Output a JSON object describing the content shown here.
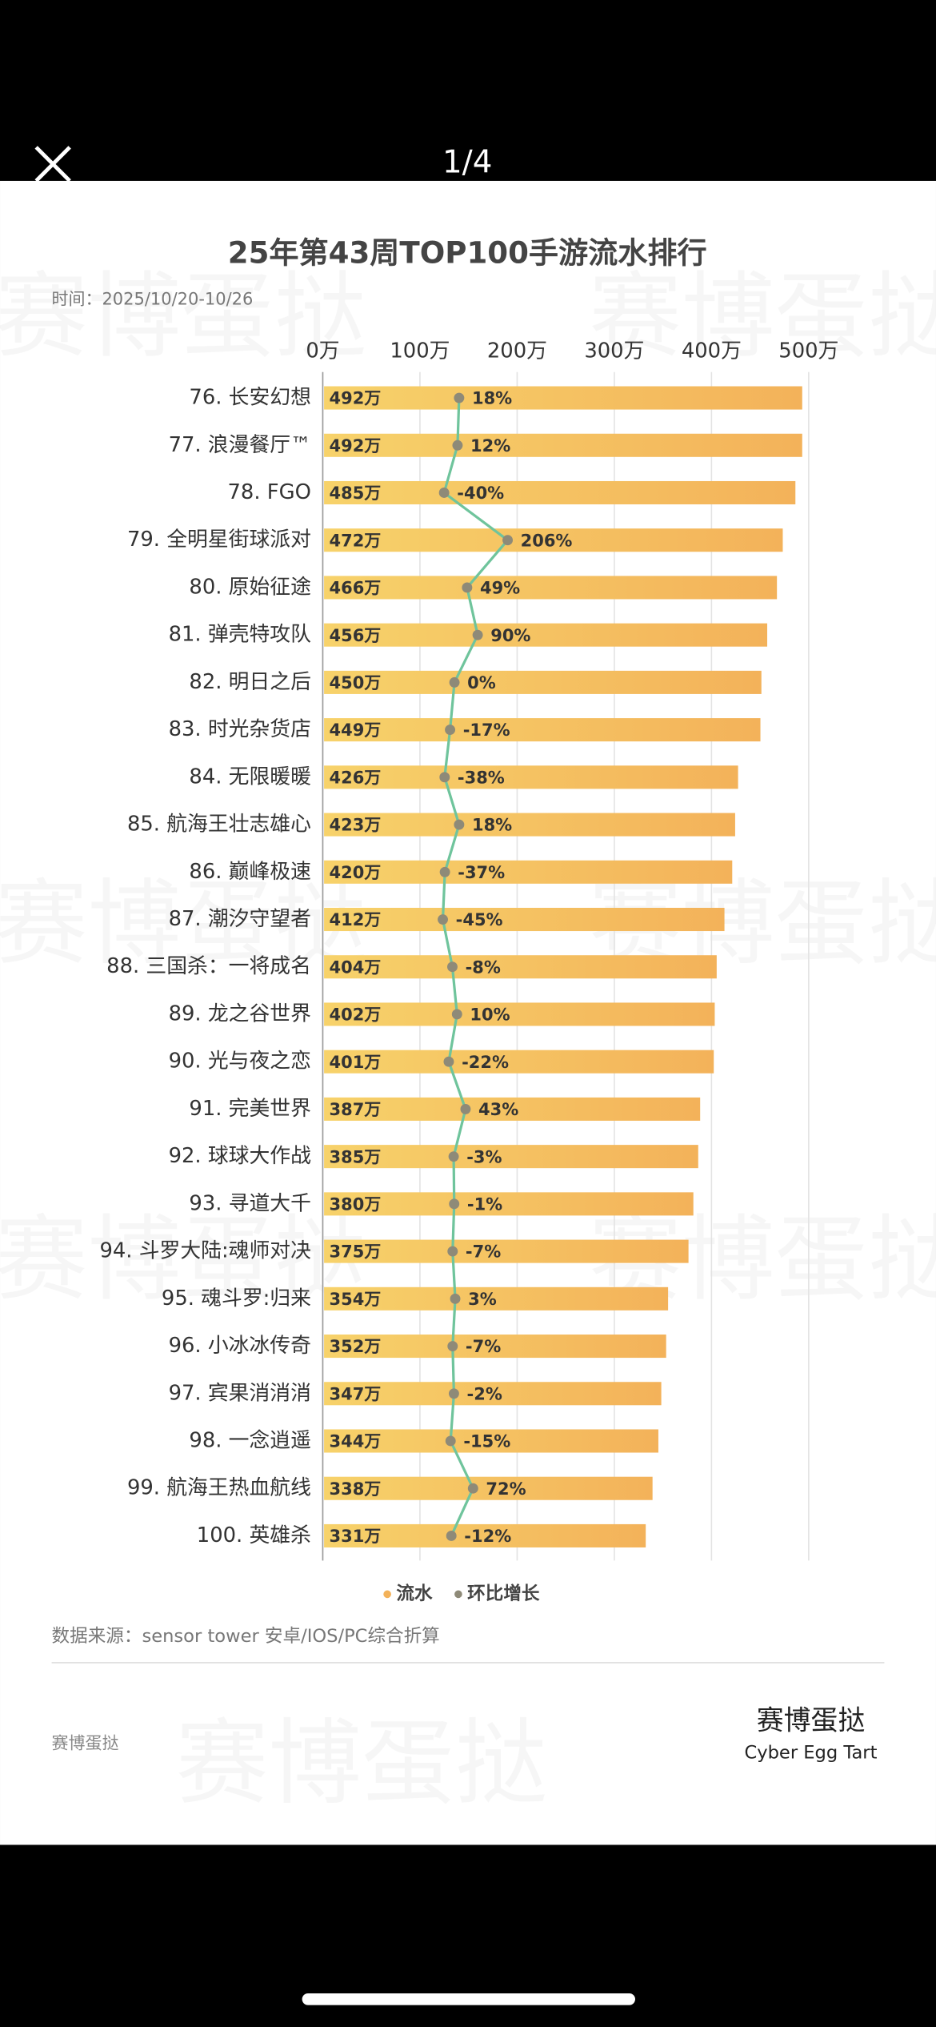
{
  "viewer": {
    "counter": "1/4"
  },
  "chart_data": {
    "type": "bar",
    "orientation": "horizontal",
    "title": "25年第43周TOP100手游流水排行",
    "subtitle": "时间：2025/10/20-10/26",
    "categories": [
      "76. 长安幻想",
      "77. 浪漫餐厅™",
      "78. FGO",
      "79. 全明星街球派对",
      "80. 原始征途",
      "81. 弹壳特攻队",
      "82. 明日之后",
      "83. 时光杂货店",
      "84. 无限暖暖",
      "85. 航海王壮志雄心",
      "86. 巅峰极速",
      "87. 潮汐守望者",
      "88. 三国杀：一将成名",
      "89. 龙之谷世界",
      "90. 光与夜之恋",
      "91. 完美世界",
      "92. 球球大作战",
      "93. 寻道大千",
      "94. 斗罗大陆:魂师对决",
      "95. 魂斗罗:归来",
      "96. 小冰冰传奇",
      "97. 宾果消消消",
      "98. 一念逍遥",
      "99. 航海王热血航线",
      "100. 英雄杀"
    ],
    "series": [
      {
        "name": "流水",
        "color": "#f3b25a",
        "values": [
          492,
          492,
          485,
          472,
          466,
          456,
          450,
          449,
          426,
          423,
          420,
          412,
          404,
          402,
          401,
          387,
          385,
          380,
          375,
          354,
          352,
          347,
          344,
          338,
          331
        ],
        "value_labels": [
          "492万",
          "492万",
          "485万",
          "472万",
          "466万",
          "456万",
          "450万",
          "449万",
          "426万",
          "423万",
          "420万",
          "412万",
          "404万",
          "402万",
          "401万",
          "387万",
          "385万",
          "380万",
          "375万",
          "354万",
          "352万",
          "347万",
          "344万",
          "338万",
          "331万"
        ]
      },
      {
        "name": "环比增长",
        "color": "#8e8a78",
        "line_color": "#6fc49c",
        "values": [
          18,
          12,
          -40,
          206,
          49,
          90,
          0,
          -17,
          -38,
          18,
          -37,
          -45,
          -8,
          10,
          -22,
          43,
          -3,
          -1,
          -7,
          3,
          -7,
          -2,
          -15,
          72,
          -12
        ],
        "value_labels": [
          "18%",
          "12%",
          "-40%",
          "206%",
          "49%",
          "90%",
          "0%",
          "-17%",
          "-38%",
          "18%",
          "-37%",
          "-45%",
          "-8%",
          "10%",
          "-22%",
          "43%",
          "-3%",
          "-1%",
          "-7%",
          "3%",
          "-7%",
          "-2%",
          "-15%",
          "72%",
          "-12%"
        ]
      }
    ],
    "xlim": [
      0,
      538
    ],
    "xticks": [
      {
        "value": 0,
        "label": "0万"
      },
      {
        "value": 100,
        "label": "100万"
      },
      {
        "value": 200,
        "label": "200万"
      },
      {
        "value": 300,
        "label": "300万"
      },
      {
        "value": 400,
        "label": "400万"
      },
      {
        "value": 500,
        "label": "500万"
      }
    ],
    "grid": true,
    "source": "数据来源：sensor tower 安卓/IOS/PC综合折算",
    "footer_left": "赛博蛋挞",
    "brand": "赛博蛋挞",
    "brand_en": "Cyber Egg Tart",
    "watermark": "赛博蛋挞"
  }
}
